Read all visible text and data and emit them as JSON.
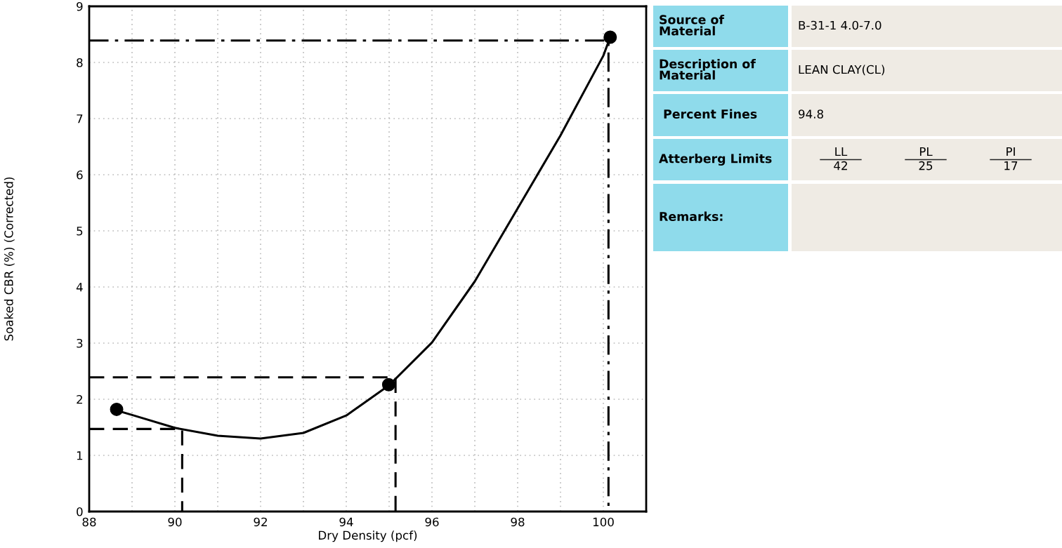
{
  "chart_data": [
    {
      "type": "scatter",
      "xlabel": "Dry Density (pcf)",
      "ylabel": "Soaked CBR (%) (Corrected)",
      "xlim": [
        88,
        101
      ],
      "ylim": [
        0,
        9
      ],
      "xticks": [
        88,
        {
          "value": 89,
          "label": null
        },
        90,
        {
          "value": 91,
          "label": null
        },
        92,
        {
          "value": 93,
          "label": null
        },
        94,
        {
          "value": 95,
          "label": null
        },
        96,
        {
          "value": 97,
          "label": null
        },
        98,
        {
          "value": 99,
          "label": null
        },
        100
      ],
      "yticks": [
        0,
        1,
        2,
        3,
        4,
        5,
        6,
        7,
        8,
        9
      ],
      "grid": true,
      "series": [
        {
          "type": "line",
          "color": "#000000",
          "line_style": "solid",
          "marker": "none",
          "x": [
            88.64,
            89,
            90,
            91,
            92,
            93,
            94,
            95,
            96,
            97,
            98,
            99,
            100,
            100.16
          ],
          "values": [
            1.8,
            1.72,
            1.49,
            1.35,
            1.3,
            1.4,
            1.71,
            2.25,
            3.01,
            4.1,
            5.4,
            6.7,
            8.12,
            8.45
          ]
        },
        {
          "type": "line",
          "color": "#000000",
          "line_style": "dashed",
          "marker": "none",
          "x": [
            88,
            90.17,
            90.17
          ],
          "values": [
            1.47,
            1.47,
            0
          ]
        },
        {
          "type": "line",
          "color": "#000000",
          "line_style": "dashed",
          "marker": "none",
          "x": [
            88,
            95.15,
            95.15
          ],
          "values": [
            2.39,
            2.39,
            0
          ]
        },
        {
          "type": "line",
          "color": "#000000",
          "line_style": "dashdot",
          "marker": "none",
          "x": [
            88,
            100.12,
            100.12
          ],
          "values": [
            8.39,
            8.39,
            0
          ]
        },
        {
          "type": "scatter",
          "color": "#000000",
          "marker": "circle",
          "x": [
            88.64,
            94.99,
            100.16
          ],
          "values": [
            1.82,
            2.26,
            8.45
          ]
        }
      ]
    },
    {
      "type": "other",
      "colors": [
        "#8fdbeb",
        "#efebe4"
      ],
      "y_categories": [
        "Source of\nMaterial",
        "Description of\nMaterial",
        " Percent Fines",
        "Atterberg Limits",
        "Remarks:"
      ],
      "cell_labels": [
        [
          "B-31-1 4.0-7.0"
        ],
        [
          "LEAN CLAY(CL)"
        ],
        [
          "94.8"
        ],
        [
          "LL",
          "42",
          "PL",
          "25",
          "PI",
          "17"
        ],
        null
      ]
    }
  ]
}
